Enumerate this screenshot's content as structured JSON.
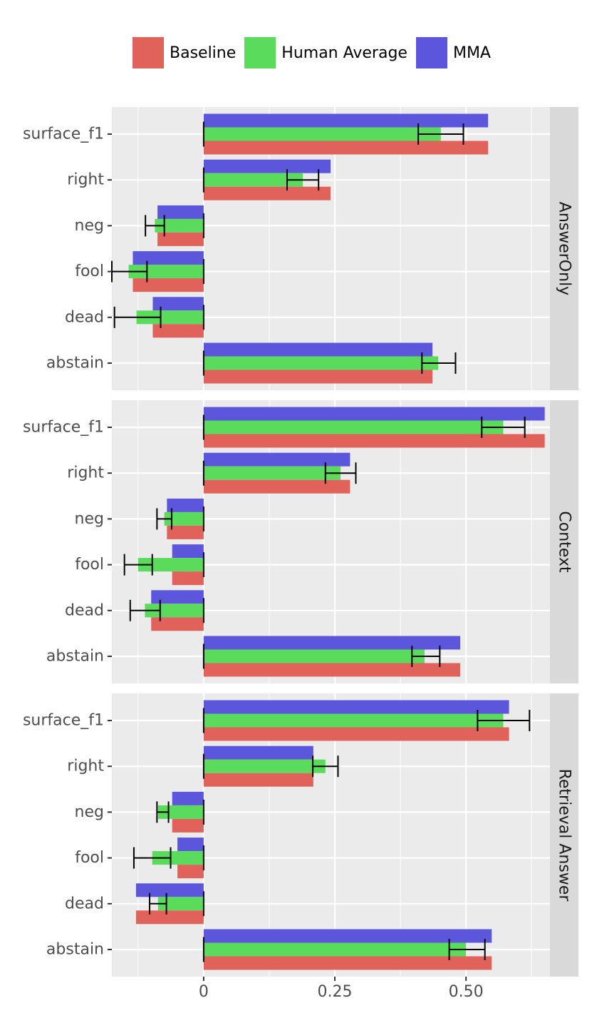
{
  "chart_data": {
    "type": "bar",
    "orientation": "horizontal",
    "categories": [
      "surface_f1",
      "right",
      "neg",
      "fool",
      "dead",
      "abstain"
    ],
    "x_ticks": [
      0,
      0.25,
      0.5
    ],
    "x_tick_labels": [
      "0",
      "0.25",
      "0.50"
    ],
    "xlim": [
      -0.175,
      0.66
    ],
    "xlabel": "",
    "ylabel": "",
    "grid": true,
    "legend_position": "top",
    "legend": [
      {
        "name": "Baseline",
        "color": "#E1625A"
      },
      {
        "name": "Human Average",
        "color": "#5BDB5B"
      },
      {
        "name": "MMA",
        "color": "#5B56DB"
      }
    ],
    "panels": [
      {
        "name": "AnswerOnly",
        "series": [
          {
            "name": "MMA",
            "values": [
              0.542,
              0.242,
              -0.088,
              -0.135,
              -0.097,
              0.436
            ]
          },
          {
            "name": "Human Average",
            "values": [
              0.452,
              0.189,
              -0.093,
              -0.143,
              -0.128,
              0.447
            ]
          },
          {
            "name": "Baseline",
            "values": [
              0.542,
              0.242,
              -0.088,
              -0.135,
              -0.097,
              0.436
            ]
          }
        ],
        "error_bars": [
          [
            0.409,
            0.495
          ],
          [
            0.159,
            0.219
          ],
          [
            -0.111,
            -0.075
          ],
          [
            -0.175,
            -0.108
          ],
          [
            -0.17,
            -0.082
          ],
          [
            0.416,
            0.48
          ]
        ]
      },
      {
        "name": "Context",
        "series": [
          {
            "name": "MMA",
            "values": [
              0.65,
              0.279,
              -0.07,
              -0.06,
              -0.1,
              0.489
            ]
          },
          {
            "name": "Human Average",
            "values": [
              0.571,
              0.261,
              -0.075,
              -0.125,
              -0.112,
              0.421
            ]
          },
          {
            "name": "Baseline",
            "values": [
              0.65,
              0.279,
              -0.07,
              -0.06,
              -0.1,
              0.489
            ]
          }
        ],
        "error_bars": [
          [
            0.53,
            0.612
          ],
          [
            0.232,
            0.29
          ],
          [
            -0.089,
            -0.061
          ],
          [
            -0.151,
            -0.098
          ],
          [
            -0.14,
            -0.083
          ],
          [
            0.397,
            0.45
          ]
        ]
      },
      {
        "name": "Retrieval Answer",
        "series": [
          {
            "name": "MMA",
            "values": [
              0.582,
              0.209,
              -0.06,
              -0.05,
              -0.129,
              0.549
            ]
          },
          {
            "name": "Human Average",
            "values": [
              0.571,
              0.232,
              -0.087,
              -0.098,
              -0.087,
              0.5
            ]
          },
          {
            "name": "Baseline",
            "values": [
              0.582,
              0.209,
              -0.06,
              -0.05,
              -0.129,
              0.549
            ]
          }
        ],
        "error_bars": [
          [
            0.522,
            0.621
          ],
          [
            0.208,
            0.256
          ],
          [
            -0.089,
            -0.067
          ],
          [
            -0.133,
            -0.063
          ],
          [
            -0.103,
            -0.071
          ],
          [
            0.468,
            0.536
          ]
        ]
      }
    ]
  }
}
